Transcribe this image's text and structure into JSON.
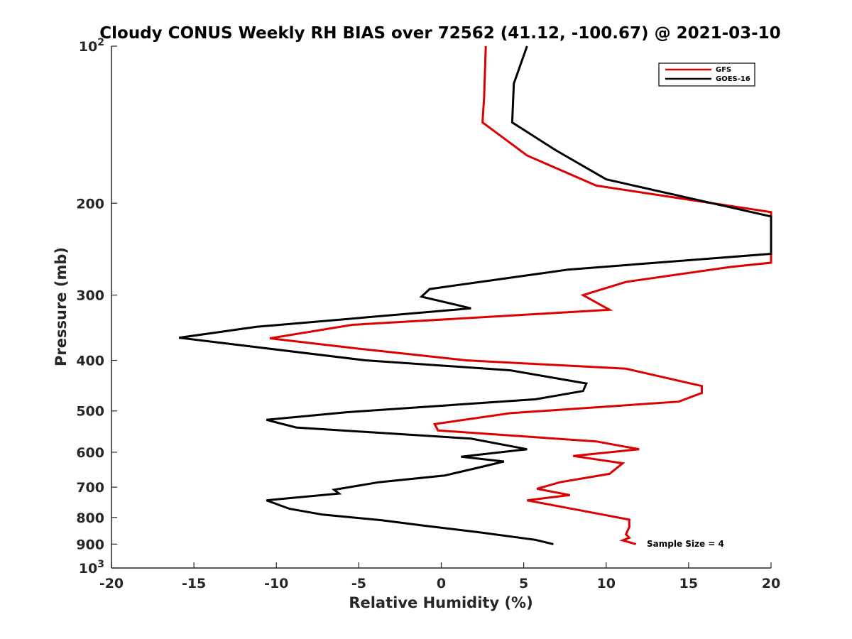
{
  "chart_data": {
    "type": "line",
    "title": "Cloudy CONUS Weekly RH BIAS over 72562 (41.12, -100.67) @ 2021-03-10",
    "xlabel": "Relative Humidity (%)",
    "ylabel": "Pressure (mb)",
    "xlim": [
      -20,
      20
    ],
    "ylim": [
      100,
      1000
    ],
    "yscale": "log",
    "y_reversed": true,
    "grid": false,
    "legend_position": "top-right",
    "x_ticks": [
      -20,
      -15,
      -10,
      -5,
      0,
      5,
      10,
      15,
      20
    ],
    "x_tick_labels": [
      "-20",
      "-15",
      "-10",
      "-5",
      "0",
      "5",
      "10",
      "15",
      "20"
    ],
    "y_ticks": [
      100,
      200,
      300,
      400,
      500,
      600,
      700,
      800,
      900,
      1000
    ],
    "y_tick_labels": [
      {
        "base": "10",
        "exp": "2"
      },
      {
        "base": "200",
        "exp": ""
      },
      {
        "base": "300",
        "exp": ""
      },
      {
        "base": "400",
        "exp": ""
      },
      {
        "base": "500",
        "exp": ""
      },
      {
        "base": "600",
        "exp": ""
      },
      {
        "base": "700",
        "exp": ""
      },
      {
        "base": "800",
        "exp": ""
      },
      {
        "base": "900",
        "exp": ""
      },
      {
        "base": "10",
        "exp": "3"
      }
    ],
    "annotation": "Sample Size = 4",
    "annotation_anchor": {
      "x": 12.5,
      "y": 900
    },
    "series": [
      {
        "name": "GFS",
        "color": "#dd0000",
        "points": [
          {
            "x": 2.7,
            "y": 100
          },
          {
            "x": 2.6,
            "y": 125
          },
          {
            "x": 2.5,
            "y": 140
          },
          {
            "x": 5.2,
            "y": 162
          },
          {
            "x": 9.4,
            "y": 185
          },
          {
            "x": 20.0,
            "y": 208
          },
          {
            "x": 20.0,
            "y": 260
          },
          {
            "x": 17.5,
            "y": 265
          },
          {
            "x": 11.2,
            "y": 283
          },
          {
            "x": 8.6,
            "y": 300
          },
          {
            "x": 10.2,
            "y": 320
          },
          {
            "x": -5.4,
            "y": 342
          },
          {
            "x": -10.4,
            "y": 363
          },
          {
            "x": -5.0,
            "y": 380
          },
          {
            "x": 1.5,
            "y": 400
          },
          {
            "x": 11.2,
            "y": 415
          },
          {
            "x": 15.8,
            "y": 448
          },
          {
            "x": 15.8,
            "y": 462
          },
          {
            "x": 14.4,
            "y": 480
          },
          {
            "x": 4.2,
            "y": 505
          },
          {
            "x": -0.4,
            "y": 530
          },
          {
            "x": -0.2,
            "y": 545
          },
          {
            "x": 9.4,
            "y": 572
          },
          {
            "x": 12.0,
            "y": 592
          },
          {
            "x": 8.0,
            "y": 610
          },
          {
            "x": 11.0,
            "y": 630
          },
          {
            "x": 10.2,
            "y": 660
          },
          {
            "x": 7.2,
            "y": 685
          },
          {
            "x": 5.8,
            "y": 705
          },
          {
            "x": 7.8,
            "y": 725
          },
          {
            "x": 5.2,
            "y": 742
          },
          {
            "x": 9.8,
            "y": 790
          },
          {
            "x": 11.4,
            "y": 808
          },
          {
            "x": 11.4,
            "y": 835
          },
          {
            "x": 11.2,
            "y": 862
          },
          {
            "x": 11.4,
            "y": 875
          },
          {
            "x": 11.0,
            "y": 885
          },
          {
            "x": 11.8,
            "y": 900
          }
        ]
      },
      {
        "name": "GOES-16",
        "color": "#000000",
        "points": [
          {
            "x": 5.2,
            "y": 100
          },
          {
            "x": 4.4,
            "y": 118
          },
          {
            "x": 4.3,
            "y": 140
          },
          {
            "x": 6.9,
            "y": 158
          },
          {
            "x": 10.0,
            "y": 180
          },
          {
            "x": 20.0,
            "y": 212
          },
          {
            "x": 20.0,
            "y": 250
          },
          {
            "x": 7.7,
            "y": 268
          },
          {
            "x": -0.7,
            "y": 292
          },
          {
            "x": -1.2,
            "y": 302
          },
          {
            "x": 1.8,
            "y": 318
          },
          {
            "x": -11.2,
            "y": 345
          },
          {
            "x": -15.9,
            "y": 362
          },
          {
            "x": -11.0,
            "y": 378
          },
          {
            "x": -4.6,
            "y": 400
          },
          {
            "x": 4.2,
            "y": 418
          },
          {
            "x": 8.8,
            "y": 443
          },
          {
            "x": 8.6,
            "y": 458
          },
          {
            "x": 5.7,
            "y": 475
          },
          {
            "x": -5.8,
            "y": 503
          },
          {
            "x": -10.6,
            "y": 520
          },
          {
            "x": -8.8,
            "y": 538
          },
          {
            "x": 1.8,
            "y": 565
          },
          {
            "x": 5.2,
            "y": 592
          },
          {
            "x": 1.2,
            "y": 612
          },
          {
            "x": 3.8,
            "y": 625
          },
          {
            "x": 2.0,
            "y": 645
          },
          {
            "x": 0.2,
            "y": 665
          },
          {
            "x": -3.8,
            "y": 685
          },
          {
            "x": -6.5,
            "y": 708
          },
          {
            "x": -6.2,
            "y": 720
          },
          {
            "x": -10.6,
            "y": 742
          },
          {
            "x": -9.2,
            "y": 770
          },
          {
            "x": -7.2,
            "y": 790
          },
          {
            "x": -3.6,
            "y": 810
          },
          {
            "x": -1.0,
            "y": 830
          },
          {
            "x": 2.4,
            "y": 855
          },
          {
            "x": 5.7,
            "y": 883
          },
          {
            "x": 6.8,
            "y": 900
          }
        ]
      }
    ]
  }
}
